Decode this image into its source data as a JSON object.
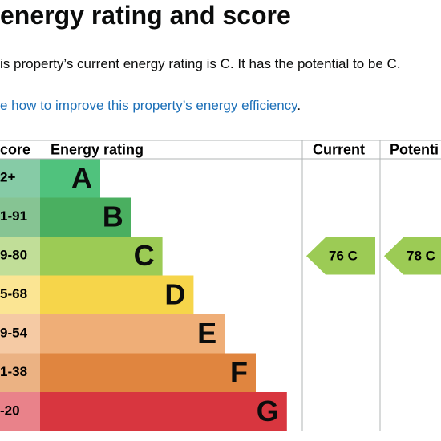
{
  "header": {
    "title": "energy rating and score"
  },
  "summary": "is property’s current energy rating is C. It has the potential to be C.",
  "link": {
    "text": "e how to improve this property’s energy efficiency",
    "after": "."
  },
  "table": {
    "headers": [
      "core",
      "Energy rating",
      "Current",
      "Potenti"
    ],
    "rows": [
      {
        "score": "2+",
        "band": "A",
        "color": "#50c27d",
        "score_color": "#86cba6"
      },
      {
        "score": "1-91",
        "band": "B",
        "color": "#4aaf60",
        "score_color": "#86c493"
      },
      {
        "score": "9-80",
        "band": "C",
        "color": "#9ccb55",
        "score_color": "#c1de98"
      },
      {
        "score": "5-68",
        "band": "D",
        "color": "#f6d54a",
        "score_color": "#fbe593"
      },
      {
        "score": "9-54",
        "band": "E",
        "color": "#efae77",
        "score_color": "#f5caa4"
      },
      {
        "score": "1-38",
        "band": "F",
        "color": "#e0853f",
        "score_color": "#ebb283"
      },
      {
        "score": "-20",
        "band": "G",
        "color": "#d8363f",
        "score_color": "#e9828a"
      }
    ],
    "current": {
      "label": "76 C",
      "row": 2
    },
    "potential": {
      "label": "78 C",
      "row": 2
    }
  }
}
